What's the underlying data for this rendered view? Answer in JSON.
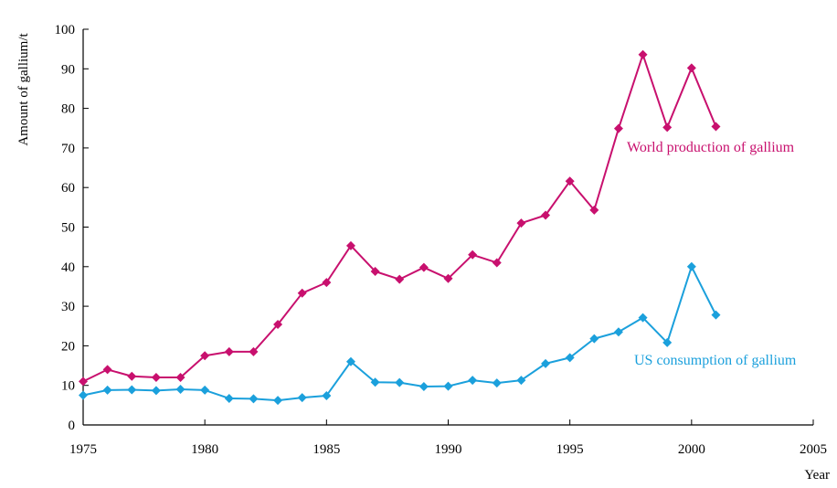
{
  "chart_data": {
    "type": "line",
    "xlabel": "Year",
    "ylabel": "Amount of gallium/t",
    "xlim": [
      1975,
      2005
    ],
    "ylim": [
      0,
      100
    ],
    "xticks": [
      "1975",
      "1980",
      "1985",
      "1990",
      "1995",
      "2000",
      "2005"
    ],
    "yticks": [
      "0",
      "10",
      "20",
      "30",
      "40",
      "50",
      "60",
      "70",
      "80",
      "90",
      "100"
    ],
    "grid": false,
    "legend": "inline labels",
    "x": [
      1975,
      1976,
      1977,
      1978,
      1979,
      1980,
      1981,
      1982,
      1983,
      1984,
      1985,
      1986,
      1987,
      1988,
      1989,
      1990,
      1991,
      1992,
      1993,
      1994,
      1995,
      1996,
      1997,
      1998,
      1999,
      2000,
      2001
    ],
    "series": [
      {
        "name": "World production of gallium",
        "color": "#c8106e",
        "marker": "diamond",
        "values": [
          11,
          14,
          12.3,
          12,
          12,
          17.5,
          18.5,
          18.5,
          25.4,
          33.3,
          36,
          45.3,
          38.8,
          36.8,
          39.8,
          37,
          43,
          41,
          51,
          53,
          61.6,
          54.3,
          74.9,
          93.6,
          75.2,
          90.2,
          75.4
        ]
      },
      {
        "name": "US consumption of gallium",
        "color": "#1ba0dc",
        "marker": "diamond",
        "values": [
          7.5,
          8.8,
          8.9,
          8.7,
          9,
          8.8,
          6.7,
          6.6,
          6.2,
          6.9,
          7.4,
          16,
          10.8,
          10.7,
          9.7,
          9.8,
          11.3,
          10.6,
          11.3,
          15.5,
          17,
          21.8,
          23.5,
          27.1,
          20.8,
          40,
          27.8
        ]
      }
    ]
  }
}
